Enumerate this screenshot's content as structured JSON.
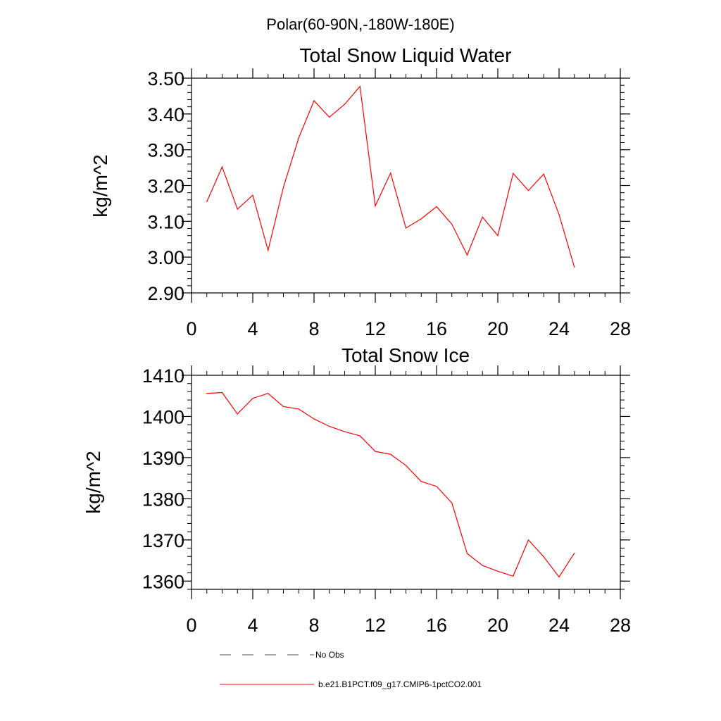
{
  "figure": {
    "suptitle": "Polar(60-90N,-180W-180E)"
  },
  "chart_data": [
    {
      "type": "line",
      "title": "Total Snow Liquid Water",
      "xlabel": "",
      "ylabel": "kg/m^2",
      "xlim": [
        0,
        28
      ],
      "ylim": [
        2.9,
        3.5
      ],
      "xticks": [
        0,
        4,
        8,
        12,
        16,
        20,
        24,
        28
      ],
      "xtick_labels": [
        "0",
        "4",
        "8",
        "12",
        "16",
        "20",
        "24",
        "28"
      ],
      "yticks": [
        2.9,
        3.0,
        3.1,
        3.2,
        3.3,
        3.4,
        3.5
      ],
      "ytick_labels": [
        "2.90",
        "3.00",
        "3.10",
        "3.20",
        "3.30",
        "3.40",
        "3.50"
      ],
      "x_minor_step": 1,
      "y_minor_step": 0.02,
      "grid": false,
      "series": [
        {
          "name": "b.e21.B1PCT.f09_g17.CMIP6-1pctCO2.001",
          "color": "#ff0000",
          "x": [
            1,
            2,
            3,
            4,
            5,
            6,
            7,
            8,
            9,
            10,
            11,
            12,
            13,
            14,
            15,
            16,
            17,
            18,
            19,
            20,
            21,
            22,
            23,
            24,
            25
          ],
          "y": [
            3.155,
            3.252,
            3.134,
            3.173,
            3.019,
            3.195,
            3.333,
            3.437,
            3.391,
            3.427,
            3.477,
            3.143,
            3.235,
            3.081,
            3.107,
            3.141,
            3.092,
            3.006,
            3.112,
            3.06,
            3.234,
            3.186,
            3.232,
            3.119,
            2.972
          ]
        }
      ]
    },
    {
      "type": "line",
      "title": "Total Snow Ice",
      "xlabel": "",
      "ylabel": "kg/m^2",
      "xlim": [
        0,
        28
      ],
      "ylim": [
        1358,
        1410
      ],
      "xticks": [
        0,
        4,
        8,
        12,
        16,
        20,
        24,
        28
      ],
      "xtick_labels": [
        "0",
        "4",
        "8",
        "12",
        "16",
        "20",
        "24",
        "28"
      ],
      "yticks": [
        1360,
        1370,
        1380,
        1390,
        1400,
        1410
      ],
      "ytick_labels": [
        "1360",
        "1370",
        "1380",
        "1390",
        "1400",
        "1410"
      ],
      "x_minor_step": 1,
      "y_minor_step": 2,
      "grid": false,
      "series": [
        {
          "name": "b.e21.B1PCT.f09_g17.CMIP6-1pctCO2.001",
          "color": "#ff0000",
          "x": [
            1,
            2,
            3,
            4,
            5,
            6,
            7,
            8,
            9,
            10,
            11,
            12,
            13,
            14,
            15,
            16,
            17,
            18,
            19,
            20,
            21,
            22,
            23,
            24,
            25
          ],
          "y": [
            1405.6,
            1405.8,
            1400.6,
            1404.4,
            1405.6,
            1402.4,
            1401.8,
            1399.4,
            1397.6,
            1396.3,
            1395.3,
            1391.5,
            1390.8,
            1388.1,
            1384.2,
            1383.0,
            1379.0,
            1366.7,
            1363.8,
            1362.4,
            1361.2,
            1370.0,
            1365.9,
            1361.0,
            1366.8
          ]
        }
      ]
    }
  ],
  "legend": {
    "placement": "bottom-left",
    "items": [
      {
        "label": "No Obs",
        "style": "dashed",
        "color": "#555555"
      },
      {
        "label": "b.e21.B1PCT.f09_g17.CMIP6-1pctCO2.001",
        "style": "solid",
        "color": "#ff0000"
      }
    ]
  }
}
